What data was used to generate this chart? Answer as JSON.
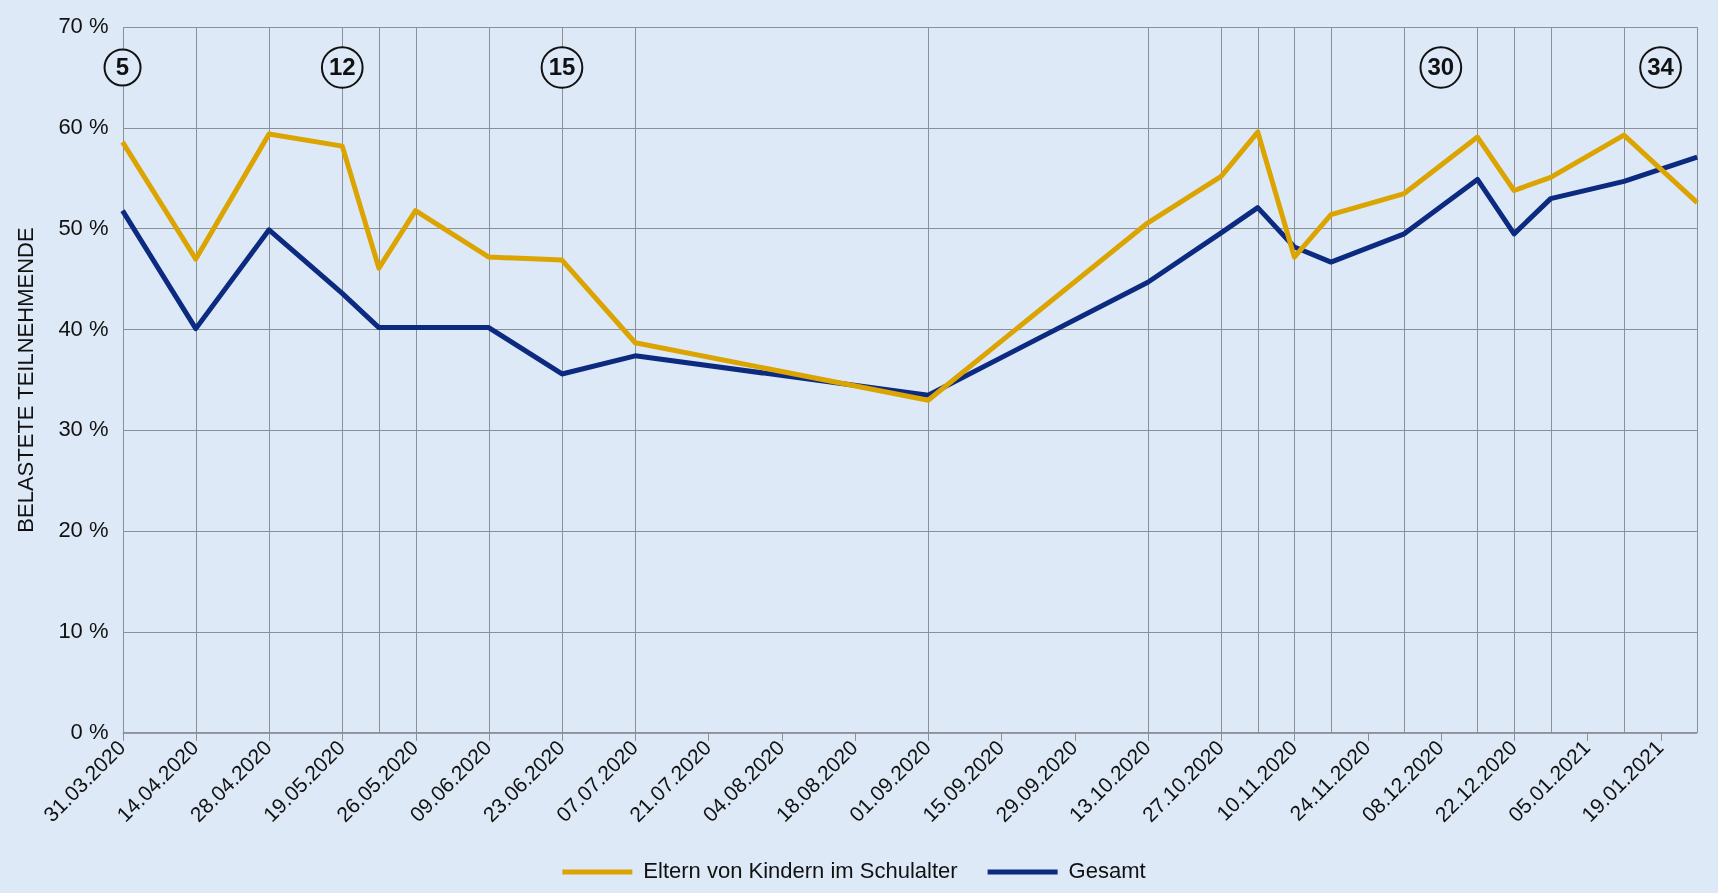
{
  "chart_data": {
    "type": "line",
    "ylabel": "BELASTETE TEILNEHMENDE",
    "categories": [
      "31.03.2020",
      null,
      "14.04.2020",
      null,
      "28.04.2020",
      null,
      "19.05.2020",
      null,
      "26.05.2020",
      null,
      "09.06.2020",
      null,
      "23.06.2020",
      null,
      "07.07.2020",
      null,
      "21.07.2020",
      null,
      "04.08.2020",
      null,
      "18.08.2020",
      null,
      "01.09.2020",
      null,
      "15.09.2020",
      null,
      "29.09.2020",
      null,
      "13.10.2020",
      null,
      "27.10.2020",
      null,
      "10.11.2020",
      null,
      "24.11.2020",
      null,
      "08.12.2020",
      null,
      "22.12.2020",
      null,
      "05.01.2021",
      null,
      "19.01.2021",
      null
    ],
    "series": [
      {
        "name": "Eltern von Kindern im Schulalter",
        "color": "#dba400",
        "values": [
          58.6,
          null,
          47.0,
          null,
          59.4,
          null,
          58.2,
          46.1,
          51.8,
          null,
          47.2,
          null,
          46.9,
          null,
          38.7,
          null,
          null,
          null,
          null,
          null,
          null,
          null,
          33.0,
          null,
          null,
          null,
          null,
          null,
          50.6,
          null,
          55.2,
          59.6,
          47.2,
          51.4,
          null,
          53.5,
          null,
          59.1,
          53.8,
          55.1,
          null,
          59.3,
          null,
          52.6
        ]
      },
      {
        "name": "Gesamt",
        "color": "#0b2a80",
        "values": [
          51.8,
          null,
          40.1,
          null,
          49.9,
          null,
          43.6,
          40.2,
          40.2,
          null,
          40.2,
          null,
          35.6,
          null,
          37.4,
          null,
          null,
          null,
          null,
          null,
          null,
          null,
          33.5,
          null,
          null,
          null,
          null,
          null,
          44.7,
          null,
          49.6,
          52.1,
          48.2,
          46.7,
          null,
          49.5,
          null,
          54.9,
          49.5,
          53.0,
          null,
          54.7,
          null,
          57.1
        ]
      }
    ],
    "ylim": [
      0,
      70
    ],
    "yticks": [
      {
        "value": 0,
        "label": "0 %"
      },
      {
        "value": 10,
        "label": "10 %"
      },
      {
        "value": 20,
        "label": "20 %"
      },
      {
        "value": 30,
        "label": "30 %"
      },
      {
        "value": 40,
        "label": "40 %"
      },
      {
        "value": 50,
        "label": "50 %"
      },
      {
        "value": 60,
        "label": "60 %"
      },
      {
        "value": 70,
        "label": "70 %"
      }
    ],
    "annotations": [
      {
        "text": "5",
        "x": "31.03.2020",
        "y": 66
      },
      {
        "text": "12",
        "x": "19.05.2020",
        "y": 66
      },
      {
        "text": "15",
        "x": "23.06.2020",
        "y": 66
      },
      {
        "text": "30",
        "x": "08.12.2020",
        "y": 66
      },
      {
        "text": "34",
        "x": "19.01.2021",
        "y": 66
      }
    ],
    "grid": true,
    "legend": "bottom",
    "marker": "none",
    "line_style": "solid"
  }
}
